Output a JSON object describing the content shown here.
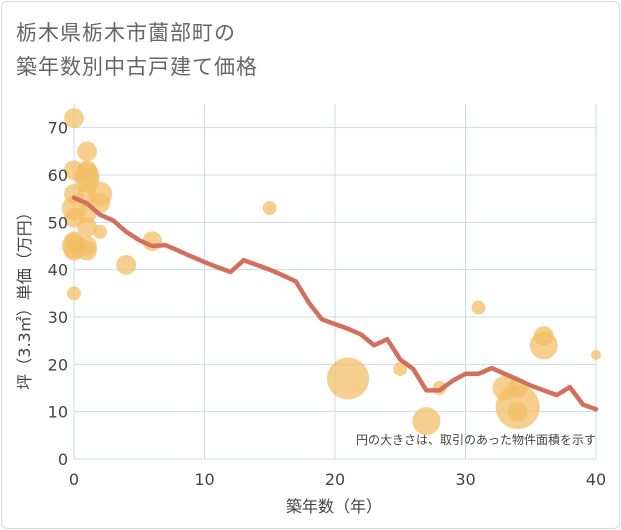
{
  "title_line1": "栃木県栃木市薗部町の",
  "title_line2": "築年数別中古戸建て価格",
  "chart_data": {
    "type": "scatter",
    "title": "栃木県栃木市薗部町の築年数別中古戸建て価格",
    "xlabel": "築年数（年）",
    "ylabel": "坪（3.3㎡）単価（万円）",
    "xlim": [
      0,
      40
    ],
    "ylim": [
      0,
      75
    ],
    "xticks": [
      0,
      10,
      20,
      30,
      40
    ],
    "yticks": [
      0,
      10,
      20,
      30,
      40,
      50,
      60,
      70
    ],
    "grid": true,
    "annotation": "円の大きさは、取引のあった物件面積を示す",
    "colors": {
      "bubble": "#f3bd62",
      "line": "#d2705d"
    },
    "scatter": [
      {
        "x": 0,
        "y": 72,
        "size": 2
      },
      {
        "x": 0,
        "y": 61,
        "size": 2
      },
      {
        "x": 0,
        "y": 56,
        "size": 2
      },
      {
        "x": 0,
        "y": 53,
        "size": 3
      },
      {
        "x": 0,
        "y": 51,
        "size": 2
      },
      {
        "x": 0,
        "y": 46,
        "size": 2
      },
      {
        "x": 0,
        "y": 45,
        "size": 3
      },
      {
        "x": 0,
        "y": 44,
        "size": 2
      },
      {
        "x": 0,
        "y": 35,
        "size": 1
      },
      {
        "x": 1,
        "y": 65,
        "size": 2
      },
      {
        "x": 1,
        "y": 61,
        "size": 2
      },
      {
        "x": 1,
        "y": 60,
        "size": 3
      },
      {
        "x": 1,
        "y": 59,
        "size": 3
      },
      {
        "x": 1,
        "y": 56,
        "size": 2
      },
      {
        "x": 1,
        "y": 52,
        "size": 2
      },
      {
        "x": 1,
        "y": 49,
        "size": 2
      },
      {
        "x": 1,
        "y": 45,
        "size": 2
      },
      {
        "x": 1,
        "y": 44,
        "size": 2
      },
      {
        "x": 2,
        "y": 56,
        "size": 3
      },
      {
        "x": 2,
        "y": 54,
        "size": 2
      },
      {
        "x": 2,
        "y": 48,
        "size": 1
      },
      {
        "x": 4,
        "y": 41,
        "size": 2
      },
      {
        "x": 6,
        "y": 46,
        "size": 2
      },
      {
        "x": 15,
        "y": 53,
        "size": 1
      },
      {
        "x": 21,
        "y": 17,
        "size": 9
      },
      {
        "x": 25,
        "y": 19,
        "size": 1
      },
      {
        "x": 27,
        "y": 8,
        "size": 4
      },
      {
        "x": 28,
        "y": 15,
        "size": 1
      },
      {
        "x": 31,
        "y": 32,
        "size": 1
      },
      {
        "x": 33,
        "y": 15,
        "size": 3
      },
      {
        "x": 34,
        "y": 11,
        "size": 10
      },
      {
        "x": 34,
        "y": 15,
        "size": 2
      },
      {
        "x": 34,
        "y": 10,
        "size": 2
      },
      {
        "x": 36,
        "y": 26,
        "size": 2
      },
      {
        "x": 36,
        "y": 24,
        "size": 4
      },
      {
        "x": 40,
        "y": 22,
        "size": 0.5
      }
    ],
    "trend_line": {
      "x": [
        0,
        1,
        2,
        3,
        4,
        5,
        6,
        7,
        8,
        9,
        10,
        11,
        12,
        13,
        14,
        15,
        16,
        17,
        18,
        19,
        20,
        21,
        22,
        23,
        24,
        25,
        26,
        27,
        28,
        29,
        30,
        31,
        32,
        33,
        34,
        35,
        36,
        37,
        38,
        39,
        40
      ],
      "y": [
        55.2,
        54.0,
        51.6,
        50.4,
        48.0,
        46.2,
        45.0,
        45.2,
        44.0,
        42.8,
        41.6,
        40.5,
        39.5,
        42.0,
        41.0,
        40.0,
        38.8,
        37.5,
        33.0,
        29.5,
        28.5,
        27.5,
        26.3,
        24.0,
        25.3,
        21.0,
        19.0,
        14.5,
        14.5,
        16.5,
        18.0,
        18.0,
        19.2,
        18.0,
        16.8,
        15.5,
        14.5,
        13.5,
        15.2,
        11.5,
        10.5
      ]
    }
  }
}
